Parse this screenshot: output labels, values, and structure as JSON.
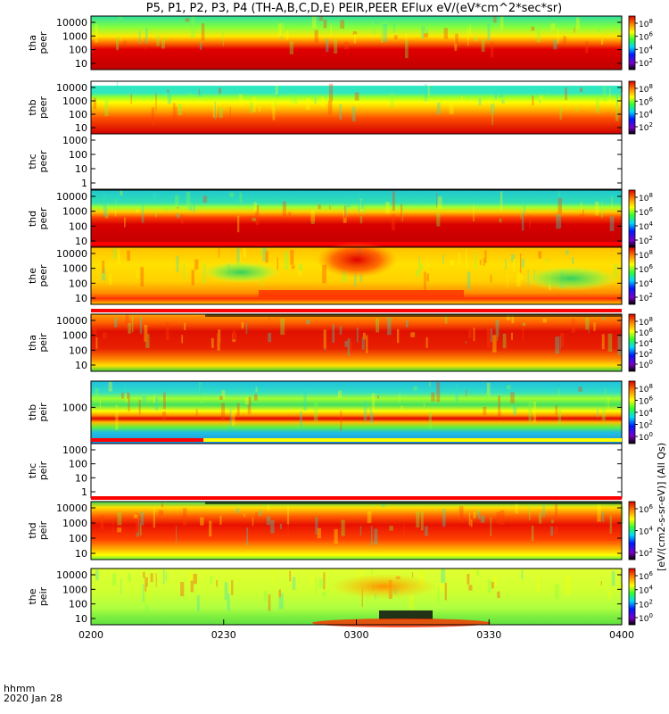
{
  "title": "P5, P1, P2, P3, P4 (TH-A,B,C,D,E) PEIR,PEER EFlux eV/(eV*cm^2*sec*sr)",
  "footer": {
    "time_label": "hhmm",
    "date_label": "2020 Jan 28"
  },
  "colorbar_side_label": "[eV/(cm2-s-sr-eV)] (All Qs)",
  "chart_data": {
    "type": "heatmap",
    "x_axis": {
      "range": [
        "02:00",
        "04:00"
      ],
      "ticks": [
        "0200",
        "0230",
        "0300",
        "0330",
        "0400"
      ]
    },
    "y_scale": "log",
    "panels": [
      {
        "id": "tha_peer",
        "probe": "tha",
        "species": "peer",
        "ylabel": "tha\npeer",
        "yticks": [
          "10",
          "100",
          "1000",
          "10000"
        ],
        "cbar_ticks": [
          "10^2",
          "10^4",
          "10^6",
          "10^8"
        ],
        "has_data": true,
        "flag_bar": false
      },
      {
        "id": "thb_peer",
        "probe": "thb",
        "species": "peer",
        "ylabel": "thb\npeer",
        "yticks": [
          "10",
          "100",
          "1000",
          "10000"
        ],
        "cbar_ticks": [
          "10^2",
          "10^4",
          "10^6",
          "10^8"
        ],
        "has_data": true,
        "flag_bar": false
      },
      {
        "id": "thc_peer",
        "probe": "thc",
        "species": "peer",
        "ylabel": "thc\npeer",
        "yticks": [
          "1",
          "10",
          "100",
          "1000"
        ],
        "cbar_ticks": [],
        "has_data": false,
        "flag_bar": false
      },
      {
        "id": "thd_peer",
        "probe": "thd",
        "species": "peer",
        "ylabel": "thd\npeer",
        "yticks": [
          "10",
          "100",
          "1000",
          "10000"
        ],
        "cbar_ticks": [
          "10^2",
          "10^4",
          "10^6",
          "10^8"
        ],
        "has_data": true,
        "flag_bar": false
      },
      {
        "id": "the_peer",
        "probe": "the",
        "species": "peer",
        "ylabel": "the\npeer",
        "yticks": [
          "10",
          "100",
          "1000",
          "10000"
        ],
        "cbar_ticks": [
          "10^2",
          "10^4",
          "10^6",
          "10^8"
        ],
        "has_data": true,
        "flag_bar": true
      },
      {
        "id": "tha_peir",
        "probe": "tha",
        "species": "peir",
        "ylabel": "tha\npeir",
        "yticks": [
          "10",
          "100",
          "1000",
          "10000"
        ],
        "cbar_ticks": [
          "10^0",
          "10^2",
          "10^4",
          "10^6",
          "10^8"
        ],
        "has_data": true,
        "flag_bar": true
      },
      {
        "id": "thb_peir",
        "probe": "thb",
        "species": "peir",
        "ylabel": "thb\npeir",
        "yticks": [
          "1000"
        ],
        "cbar_ticks": [
          "10^0",
          "10^2",
          "10^4",
          "10^6",
          "10^8"
        ],
        "has_data": true,
        "flag_bar": false
      },
      {
        "id": "thc_peir",
        "probe": "thc",
        "species": "peir",
        "ylabel": "thc\npeir",
        "yticks": [
          "1",
          "10",
          "100",
          "1000"
        ],
        "cbar_ticks": [],
        "has_data": false,
        "flag_bar": true
      },
      {
        "id": "thd_peir",
        "probe": "thd",
        "species": "peir",
        "ylabel": "thd\npeir",
        "yticks": [
          "10",
          "100",
          "1000",
          "10000"
        ],
        "cbar_ticks": [
          "10^2",
          "10^4",
          "10^6"
        ],
        "has_data": true,
        "flag_bar": true
      },
      {
        "id": "the_peir",
        "probe": "the",
        "species": "peir",
        "ylabel": "the\npeir",
        "yticks": [
          "10",
          "100",
          "1000",
          "10000"
        ],
        "cbar_ticks": [
          "10^0",
          "10^2",
          "10^4",
          "10^6"
        ],
        "has_data": true,
        "flag_bar": false
      }
    ],
    "colormap": "rainbow (black-purple-blue-cyan-green-yellow-orange-red)"
  }
}
